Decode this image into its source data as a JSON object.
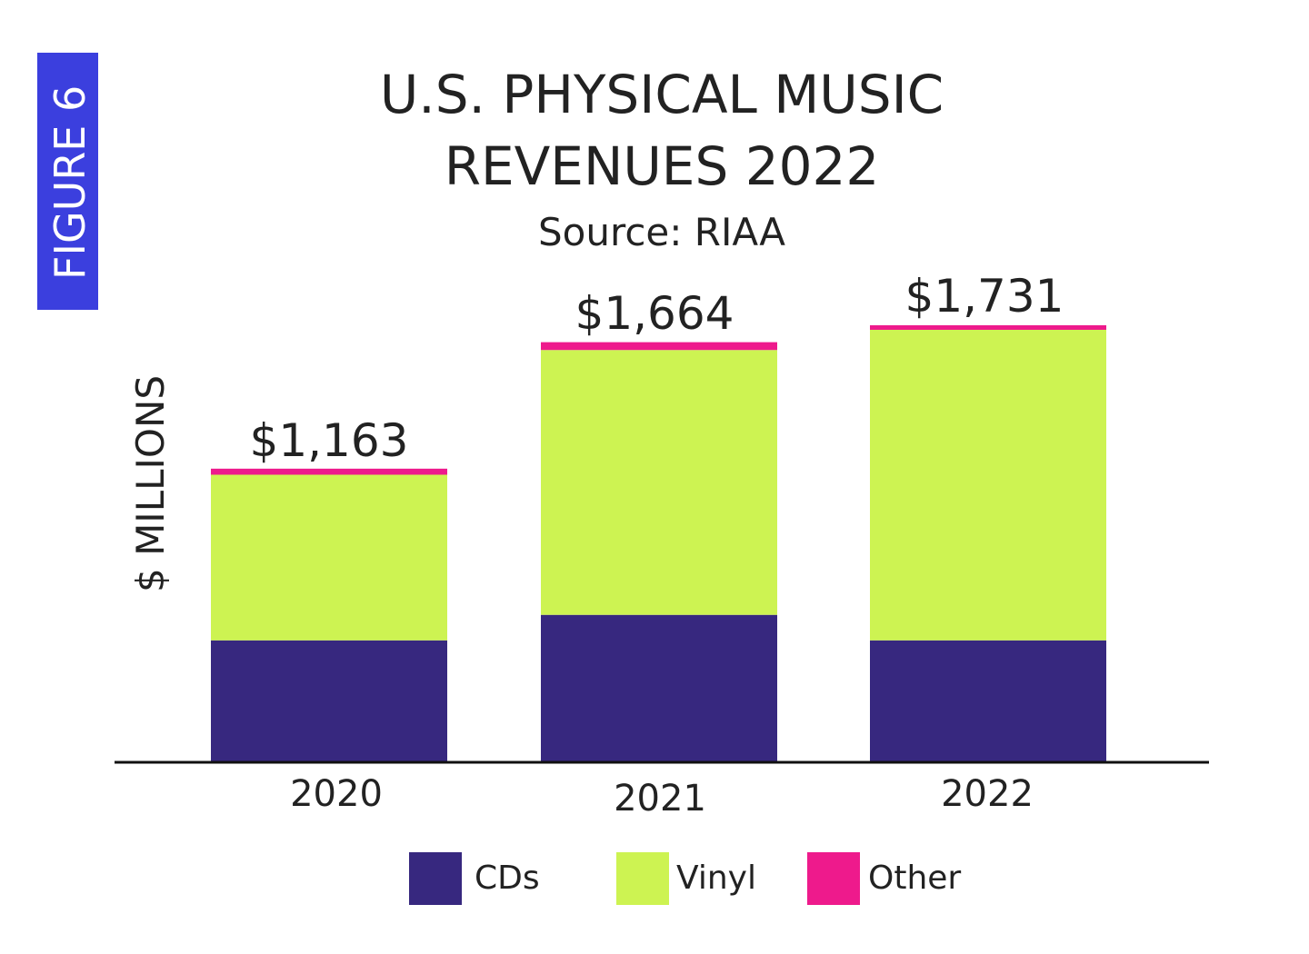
{
  "figure_label": "FIGURE 6",
  "colors": {
    "figure_badge": "#3b3fde",
    "CDs": "#37287f",
    "Vinyl": "#cdf352",
    "Other": "#ee1a8c",
    "axis": "#111111"
  },
  "chart_data": {
    "type": "bar",
    "stacked": true,
    "title": "U.S. PHYSICAL MUSIC REVENUES 2022",
    "title_lines": [
      "U.S. PHYSICAL MUSIC",
      "REVENUES 2022"
    ],
    "subtitle": "Source: RIAA",
    "ylabel": "$ MILLIONS",
    "xlabel": "",
    "ylim": [
      0,
      1731
    ],
    "grid": false,
    "legend_position": "bottom",
    "categories": [
      "2020",
      "2021",
      "2022"
    ],
    "series": [
      {
        "name": "CDs",
        "values": [
          483,
          584,
          483
        ]
      },
      {
        "name": "Vinyl",
        "values": [
          656,
          1049,
          1230
        ]
      },
      {
        "name": "Other",
        "values": [
          24,
          31,
          18
        ]
      }
    ],
    "totals": [
      1163,
      1664,
      1731
    ],
    "total_labels": [
      "$1,163",
      "$1,664",
      "$1,731"
    ]
  }
}
